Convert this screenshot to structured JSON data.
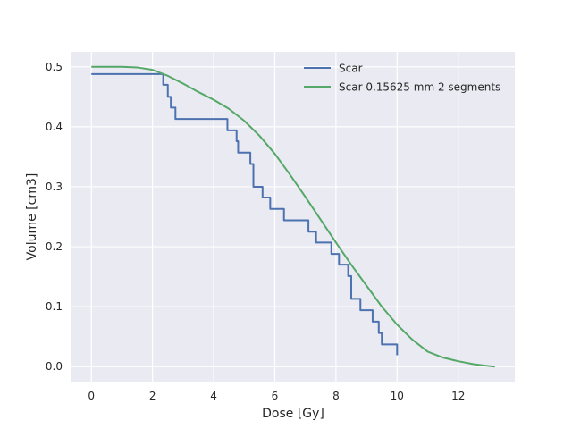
{
  "chart_data": {
    "type": "line",
    "title": "",
    "xlabel": "Dose [Gy]",
    "ylabel": "Volume [cm3]",
    "xlim": [
      -0.65,
      13.85
    ],
    "ylim": [
      -0.025,
      0.525
    ],
    "xticks": [
      0,
      2,
      4,
      6,
      8,
      10,
      12
    ],
    "xtick_labels": [
      "0",
      "2",
      "4",
      "6",
      "8",
      "10",
      "12"
    ],
    "yticks": [
      0.0,
      0.1,
      0.2,
      0.3,
      0.4,
      0.5
    ],
    "ytick_labels": [
      "0.0",
      "0.1",
      "0.2",
      "0.3",
      "0.4",
      "0.5"
    ],
    "grid": true,
    "legend_position": "top-right",
    "series": [
      {
        "name": "Scar",
        "color": "#4c72b0",
        "step": true,
        "x": [
          0,
          2.35,
          2.5,
          2.6,
          2.75,
          4.45,
          4.75,
          4.8,
          5.2,
          5.3,
          5.6,
          5.85,
          6.3,
          7.1,
          7.35,
          7.85,
          8.1,
          8.4,
          8.5,
          8.8,
          9.2,
          9.4,
          9.5,
          10.0
        ],
        "y": [
          0.488,
          0.47,
          0.45,
          0.432,
          0.413,
          0.394,
          0.376,
          0.357,
          0.338,
          0.3,
          0.282,
          0.263,
          0.244,
          0.225,
          0.207,
          0.188,
          0.17,
          0.151,
          0.113,
          0.094,
          0.075,
          0.056,
          0.037,
          0.019
        ]
      },
      {
        "name": "Scar 0.15625 mm 2 segments",
        "color": "#55a868",
        "step": false,
        "x": [
          0,
          0.5,
          1.0,
          1.5,
          2.0,
          2.5,
          3.0,
          3.5,
          4.0,
          4.5,
          5.0,
          5.5,
          6.0,
          6.5,
          7.0,
          7.5,
          8.0,
          8.5,
          9.0,
          9.5,
          10.0,
          10.5,
          11.0,
          11.5,
          12.0,
          12.5,
          13.0,
          13.2
        ],
        "y": [
          0.5,
          0.5,
          0.5,
          0.499,
          0.495,
          0.485,
          0.472,
          0.458,
          0.445,
          0.43,
          0.41,
          0.385,
          0.355,
          0.32,
          0.283,
          0.245,
          0.207,
          0.17,
          0.135,
          0.1,
          0.07,
          0.045,
          0.025,
          0.015,
          0.009,
          0.004,
          0.001,
          0.0
        ]
      }
    ]
  }
}
